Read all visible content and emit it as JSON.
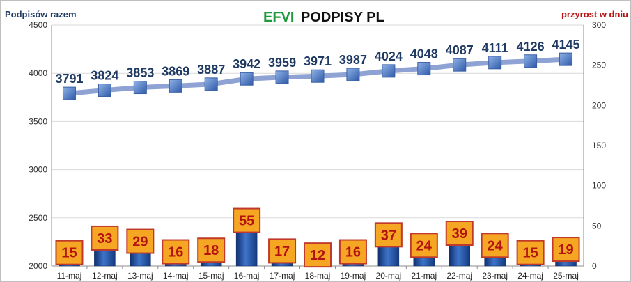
{
  "chart_data": {
    "type": "bar",
    "title_part1": "EFVI",
    "title_part2": "PODPISY PL",
    "ylabel_left": "Podpisów razem",
    "ylabel_right": "przyrost w dniu",
    "categories": [
      "11-maj",
      "12-maj",
      "13-maj",
      "14-maj",
      "15-maj",
      "16-maj",
      "17-maj",
      "18-maj",
      "19-maj",
      "20-maj",
      "21-maj",
      "22-maj",
      "23-maj",
      "24-maj",
      "25-maj"
    ],
    "left_axis": {
      "min": 2000,
      "max": 4500,
      "ticks": [
        "2000",
        "2500",
        "3000",
        "3500",
        "4000",
        "4500"
      ]
    },
    "right_axis": {
      "min": 0,
      "max": 300,
      "ticks": [
        "0",
        "50",
        "100",
        "150",
        "200",
        "250",
        "300"
      ]
    },
    "grid": true,
    "series": [
      {
        "name": "Podpisów razem",
        "type": "line",
        "axis": "left",
        "color": "#8ea3d3",
        "values": [
          3791,
          3824,
          3853,
          3869,
          3887,
          3942,
          3959,
          3971,
          3987,
          4024,
          4048,
          4087,
          4111,
          4126,
          4145
        ],
        "labels": [
          "3791",
          "3824",
          "3853",
          "3869",
          "3887",
          "3942",
          "3959",
          "3971",
          "3987",
          "4024",
          "4048",
          "4087",
          "4111",
          "4126",
          "4145"
        ]
      },
      {
        "name": "przyrost w dniu",
        "type": "bar",
        "axis": "right",
        "color": "#1c4c9c",
        "values": [
          15,
          33,
          29,
          16,
          18,
          55,
          17,
          12,
          16,
          37,
          24,
          39,
          24,
          15,
          19
        ],
        "labels": [
          "15",
          "33",
          "29",
          "16",
          "18",
          "55",
          "17",
          "12",
          "16",
          "37",
          "24",
          "39",
          "24",
          "15",
          "19"
        ]
      }
    ]
  }
}
